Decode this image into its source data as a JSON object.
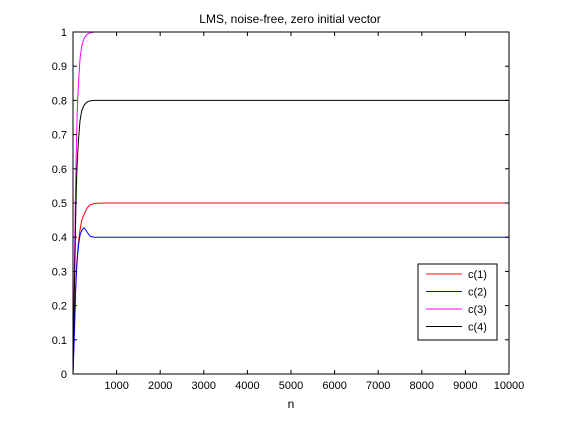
{
  "chart_data": {
    "type": "line",
    "title": "LMS, noise-free, zero initial vector",
    "xlabel": "n",
    "ylabel": "",
    "xlim": [
      0,
      10000
    ],
    "ylim": [
      0,
      1
    ],
    "xticks": [
      1000,
      2000,
      3000,
      4000,
      5000,
      6000,
      7000,
      8000,
      9000,
      10000
    ],
    "xtick_labels": [
      "1000",
      "2000",
      "3000",
      "4000",
      "5000",
      "6000",
      "7000",
      "8000",
      "9000",
      "10000"
    ],
    "yticks": [
      0,
      0.1,
      0.2,
      0.3,
      0.4,
      0.5,
      0.6,
      0.7,
      0.8,
      0.9,
      1
    ],
    "ytick_labels": [
      "0",
      "0.1",
      "0.2",
      "0.3",
      "0.4",
      "0.5",
      "0.6",
      "0.7",
      "0.8",
      "0.9",
      "1"
    ],
    "grid": false,
    "legend_position": "bottom-right",
    "series": [
      {
        "name": "c(1)",
        "color": "#ff0000",
        "x": [
          0,
          20,
          40,
          60,
          80,
          100,
          130,
          160,
          200,
          250,
          300,
          350,
          400,
          500,
          700,
          1000,
          10000
        ],
        "y": [
          0.0,
          0.1,
          0.17,
          0.25,
          0.31,
          0.35,
          0.39,
          0.42,
          0.45,
          0.465,
          0.48,
          0.49,
          0.495,
          0.499,
          0.5,
          0.5,
          0.5
        ]
      },
      {
        "name": "c(2)",
        "color": "#0000ff",
        "x": [
          0,
          20,
          40,
          60,
          80,
          100,
          130,
          160,
          200,
          250,
          300,
          350,
          400,
          500,
          700,
          1000,
          10000
        ],
        "y": [
          0.0,
          0.07,
          0.15,
          0.24,
          0.3,
          0.34,
          0.38,
          0.405,
          0.42,
          0.428,
          0.42,
          0.41,
          0.402,
          0.4,
          0.4,
          0.4,
          0.4
        ]
      },
      {
        "name": "c(3)",
        "color": "#ff00ff",
        "x": [
          0,
          20,
          40,
          60,
          80,
          100,
          130,
          160,
          200,
          250,
          300,
          350,
          400,
          500,
          700,
          1000,
          10000
        ],
        "y": [
          0.0,
          0.2,
          0.38,
          0.55,
          0.68,
          0.78,
          0.86,
          0.92,
          0.96,
          0.98,
          0.99,
          0.995,
          0.998,
          1.0,
          1.0,
          1.0,
          1.0
        ]
      },
      {
        "name": "c(4)",
        "color": "#000000",
        "x": [
          0,
          20,
          40,
          60,
          80,
          100,
          130,
          160,
          200,
          250,
          300,
          350,
          400,
          500,
          700,
          1000,
          10000
        ],
        "y": [
          0.0,
          0.15,
          0.3,
          0.45,
          0.56,
          0.63,
          0.69,
          0.74,
          0.77,
          0.785,
          0.793,
          0.797,
          0.799,
          0.8,
          0.8,
          0.8,
          0.8
        ]
      }
    ]
  }
}
